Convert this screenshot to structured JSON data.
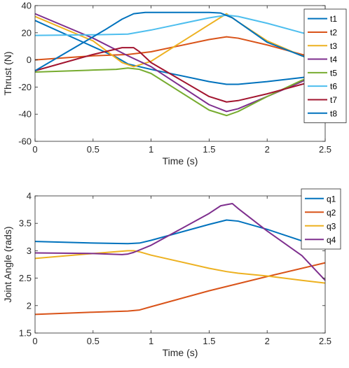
{
  "chart_data": [
    {
      "type": "line",
      "xlabel": "Time (s)",
      "ylabel": "Thrust (N)",
      "xlim": [
        0,
        2.5
      ],
      "ylim": [
        -60,
        40
      ],
      "xticks": [
        0,
        0.5,
        1,
        1.5,
        2,
        2.5
      ],
      "yticks": [
        -60,
        -40,
        -20,
        0,
        20,
        40
      ],
      "xtick_labels": [
        "0",
        "0.5",
        "1",
        "1.5",
        "2",
        "2.5"
      ],
      "ytick_labels": [
        "-60",
        "-40",
        "-20",
        "0",
        "20",
        "40"
      ],
      "grid": false,
      "legend": "top-right",
      "series": [
        {
          "name": "t1",
          "color": "#0072BD",
          "x": [
            0,
            0.7,
            0.8,
            1.0,
            1.5,
            1.65,
            1.75,
            2.0,
            2.3,
            2.5
          ],
          "y": [
            29,
            2,
            -3,
            -7,
            -16,
            -18,
            -18,
            -16,
            -13,
            -11
          ]
        },
        {
          "name": "t2",
          "color": "#D95319",
          "x": [
            0,
            0.5,
            0.8,
            1.0,
            1.5,
            1.65,
            1.75,
            2.0,
            2.3,
            2.5
          ],
          "y": [
            0,
            3,
            4,
            6,
            15,
            17,
            16,
            11,
            4,
            0
          ]
        },
        {
          "name": "t3",
          "color": "#EDB120",
          "x": [
            0,
            0.5,
            0.75,
            0.85,
            1.0,
            1.5,
            1.65,
            1.75,
            2.0,
            2.3,
            2.5
          ],
          "y": [
            32,
            14,
            -2,
            -5,
            -1,
            26,
            34,
            28,
            14,
            3,
            -2
          ]
        },
        {
          "name": "t4",
          "color": "#7E2F8E",
          "x": [
            0,
            0.5,
            0.8,
            1.0,
            1.5,
            1.65,
            1.75,
            2.0,
            2.3,
            2.5
          ],
          "y": [
            34,
            16,
            3,
            -5,
            -33,
            -38,
            -36,
            -27,
            -16,
            -6
          ]
        },
        {
          "name": "t5",
          "color": "#77AC30",
          "x": [
            0,
            0.5,
            0.7,
            0.8,
            0.9,
            1.0,
            1.5,
            1.65,
            1.75,
            2.0,
            2.3,
            2.5
          ],
          "y": [
            -9,
            -7.5,
            -7,
            -6,
            -7,
            -10,
            -37,
            -41,
            -38,
            -27,
            -15,
            -9
          ]
        },
        {
          "name": "t6",
          "color": "#4DBEEE",
          "x": [
            0,
            0.5,
            0.8,
            1.0,
            1.5,
            1.65,
            1.75,
            2.0,
            2.3,
            2.5
          ],
          "y": [
            18,
            18.5,
            19,
            22,
            31,
            33,
            32,
            27,
            20,
            16
          ]
        },
        {
          "name": "t7",
          "color": "#A2142F",
          "x": [
            0,
            0.5,
            0.75,
            0.85,
            0.9,
            1.0,
            1.5,
            1.65,
            1.75,
            2.0,
            2.3,
            2.5
          ],
          "y": [
            -8,
            4,
            9,
            9,
            6,
            -2,
            -27,
            -31,
            -30,
            -25,
            -18,
            -14
          ]
        },
        {
          "name": "t8",
          "color": "#0072BD",
          "x": [
            0,
            0.5,
            0.6,
            0.75,
            0.85,
            0.95,
            1.0,
            1.5,
            1.6,
            1.7,
            2.0,
            2.3,
            2.5
          ],
          "y": [
            -8,
            17,
            22,
            30,
            34,
            35,
            35,
            35,
            34.5,
            31,
            13,
            3,
            -3
          ]
        }
      ]
    },
    {
      "type": "line",
      "xlabel": "Time (s)",
      "ylabel": "Joint Angle (rads)",
      "xlim": [
        0,
        2.5
      ],
      "ylim": [
        1.5,
        4
      ],
      "xticks": [
        0,
        0.5,
        1,
        1.5,
        2,
        2.5
      ],
      "yticks": [
        1.5,
        2,
        2.5,
        3,
        3.5,
        4
      ],
      "xtick_labels": [
        "0",
        "0.5",
        "1",
        "1.5",
        "2",
        "2.5"
      ],
      "ytick_labels": [
        "1.5",
        "2",
        "2.5",
        "3",
        "3.5",
        "4"
      ],
      "grid": false,
      "legend": "top-right",
      "series": [
        {
          "name": "q1",
          "color": "#0072BD",
          "x": [
            0,
            0.5,
            0.8,
            0.9,
            1.0,
            1.5,
            1.65,
            1.75,
            2.0,
            2.3,
            2.5
          ],
          "y": [
            3.17,
            3.14,
            3.13,
            3.14,
            3.19,
            3.48,
            3.56,
            3.54,
            3.39,
            3.18,
            3.04
          ]
        },
        {
          "name": "q2",
          "color": "#D95319",
          "x": [
            0,
            0.5,
            0.8,
            0.9,
            1.0,
            1.5,
            2.0,
            2.5
          ],
          "y": [
            1.84,
            1.88,
            1.9,
            1.92,
            1.98,
            2.27,
            2.53,
            2.78
          ]
        },
        {
          "name": "q3",
          "color": "#EDB120",
          "x": [
            0,
            0.5,
            0.8,
            0.85,
            0.9,
            1.0,
            1.5,
            1.65,
            1.75,
            2.0,
            2.3,
            2.5
          ],
          "y": [
            2.86,
            2.95,
            3.0,
            3.0,
            2.98,
            2.92,
            2.68,
            2.62,
            2.59,
            2.54,
            2.46,
            2.41
          ]
        },
        {
          "name": "q4",
          "color": "#7E2F8E",
          "x": [
            0,
            0.5,
            0.75,
            0.8,
            0.85,
            1.0,
            1.5,
            1.6,
            1.65,
            1.7,
            1.75,
            2.0,
            2.3,
            2.5
          ],
          "y": [
            2.96,
            2.95,
            2.93,
            2.94,
            2.97,
            3.1,
            3.68,
            3.82,
            3.84,
            3.86,
            3.77,
            3.36,
            2.91,
            2.46
          ]
        }
      ]
    }
  ]
}
